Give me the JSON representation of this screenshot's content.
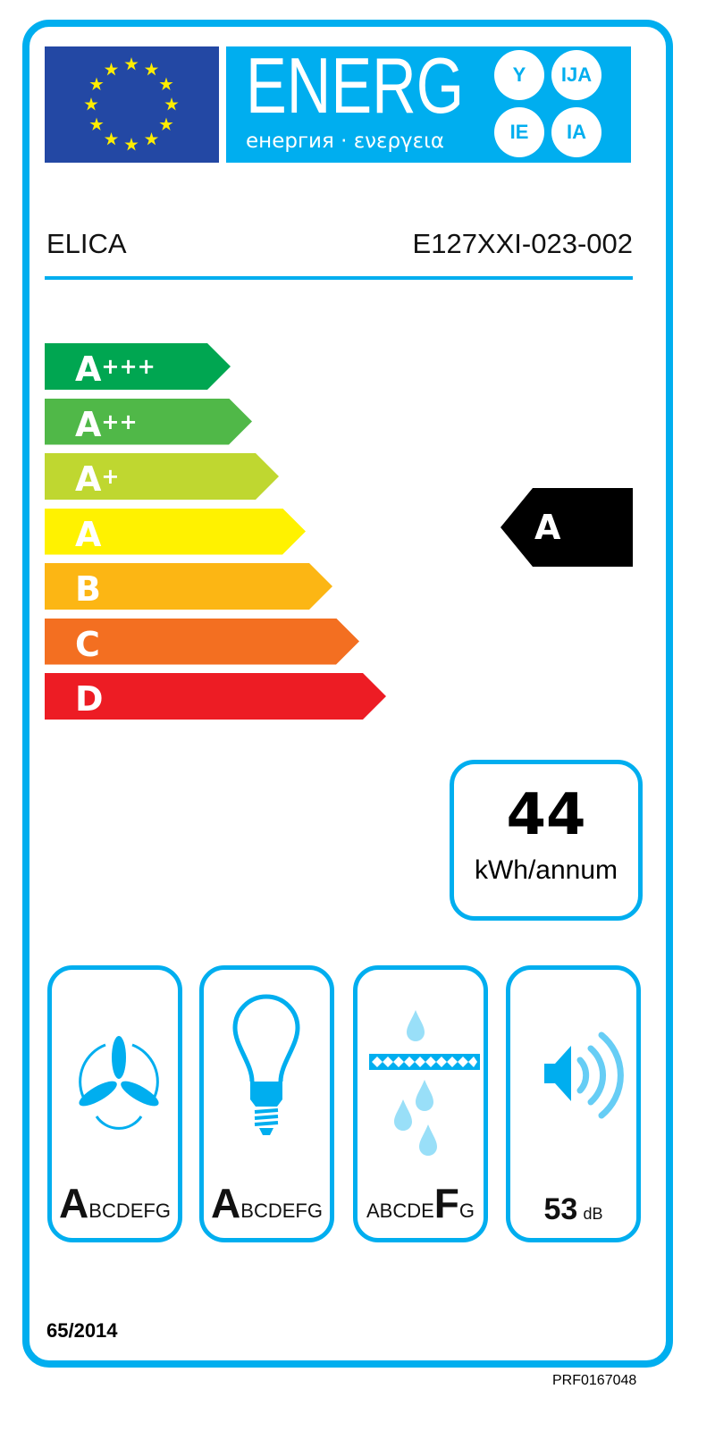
{
  "header": {
    "energy_word": "ENERG",
    "energy_subtitle": "енергия · ενεργεια",
    "language_suffixes": [
      "Y",
      "IJA",
      "IE",
      "IA"
    ]
  },
  "supplier": "ELICA",
  "model": "E127XXI-023-002",
  "scale": [
    {
      "letter": "A",
      "plus": "+++",
      "color": "#00a651"
    },
    {
      "letter": "A",
      "plus": "++",
      "color": "#50b848"
    },
    {
      "letter": "A",
      "plus": "+",
      "color": "#bfd730"
    },
    {
      "letter": "A",
      "plus": "",
      "color": "#fff200"
    },
    {
      "letter": "B",
      "plus": "",
      "color": "#fcb614"
    },
    {
      "letter": "C",
      "plus": "",
      "color": "#f36f21"
    },
    {
      "letter": "D",
      "plus": "",
      "color": "#ed1c24"
    }
  ],
  "rating": "A",
  "consumption": {
    "value": "44",
    "unit": "kWh/annum"
  },
  "pictograms": [
    {
      "icon": "fan-icon",
      "before": "",
      "big": "A",
      "after": "BCDEFG"
    },
    {
      "icon": "light-bulb-icon",
      "before": "",
      "big": "A",
      "after": "BCDEFG"
    },
    {
      "icon": "grease-filter-icon",
      "before": "ABCDE",
      "big": "F",
      "after": "G"
    },
    {
      "icon": "speaker-icon",
      "value": "53",
      "unit": "dB"
    }
  ],
  "regulation": "65/2014",
  "reference": "PRF0167048",
  "colors": {
    "frame": "#00aeef",
    "flag": "#2348a4",
    "stars": "#ffed00"
  }
}
